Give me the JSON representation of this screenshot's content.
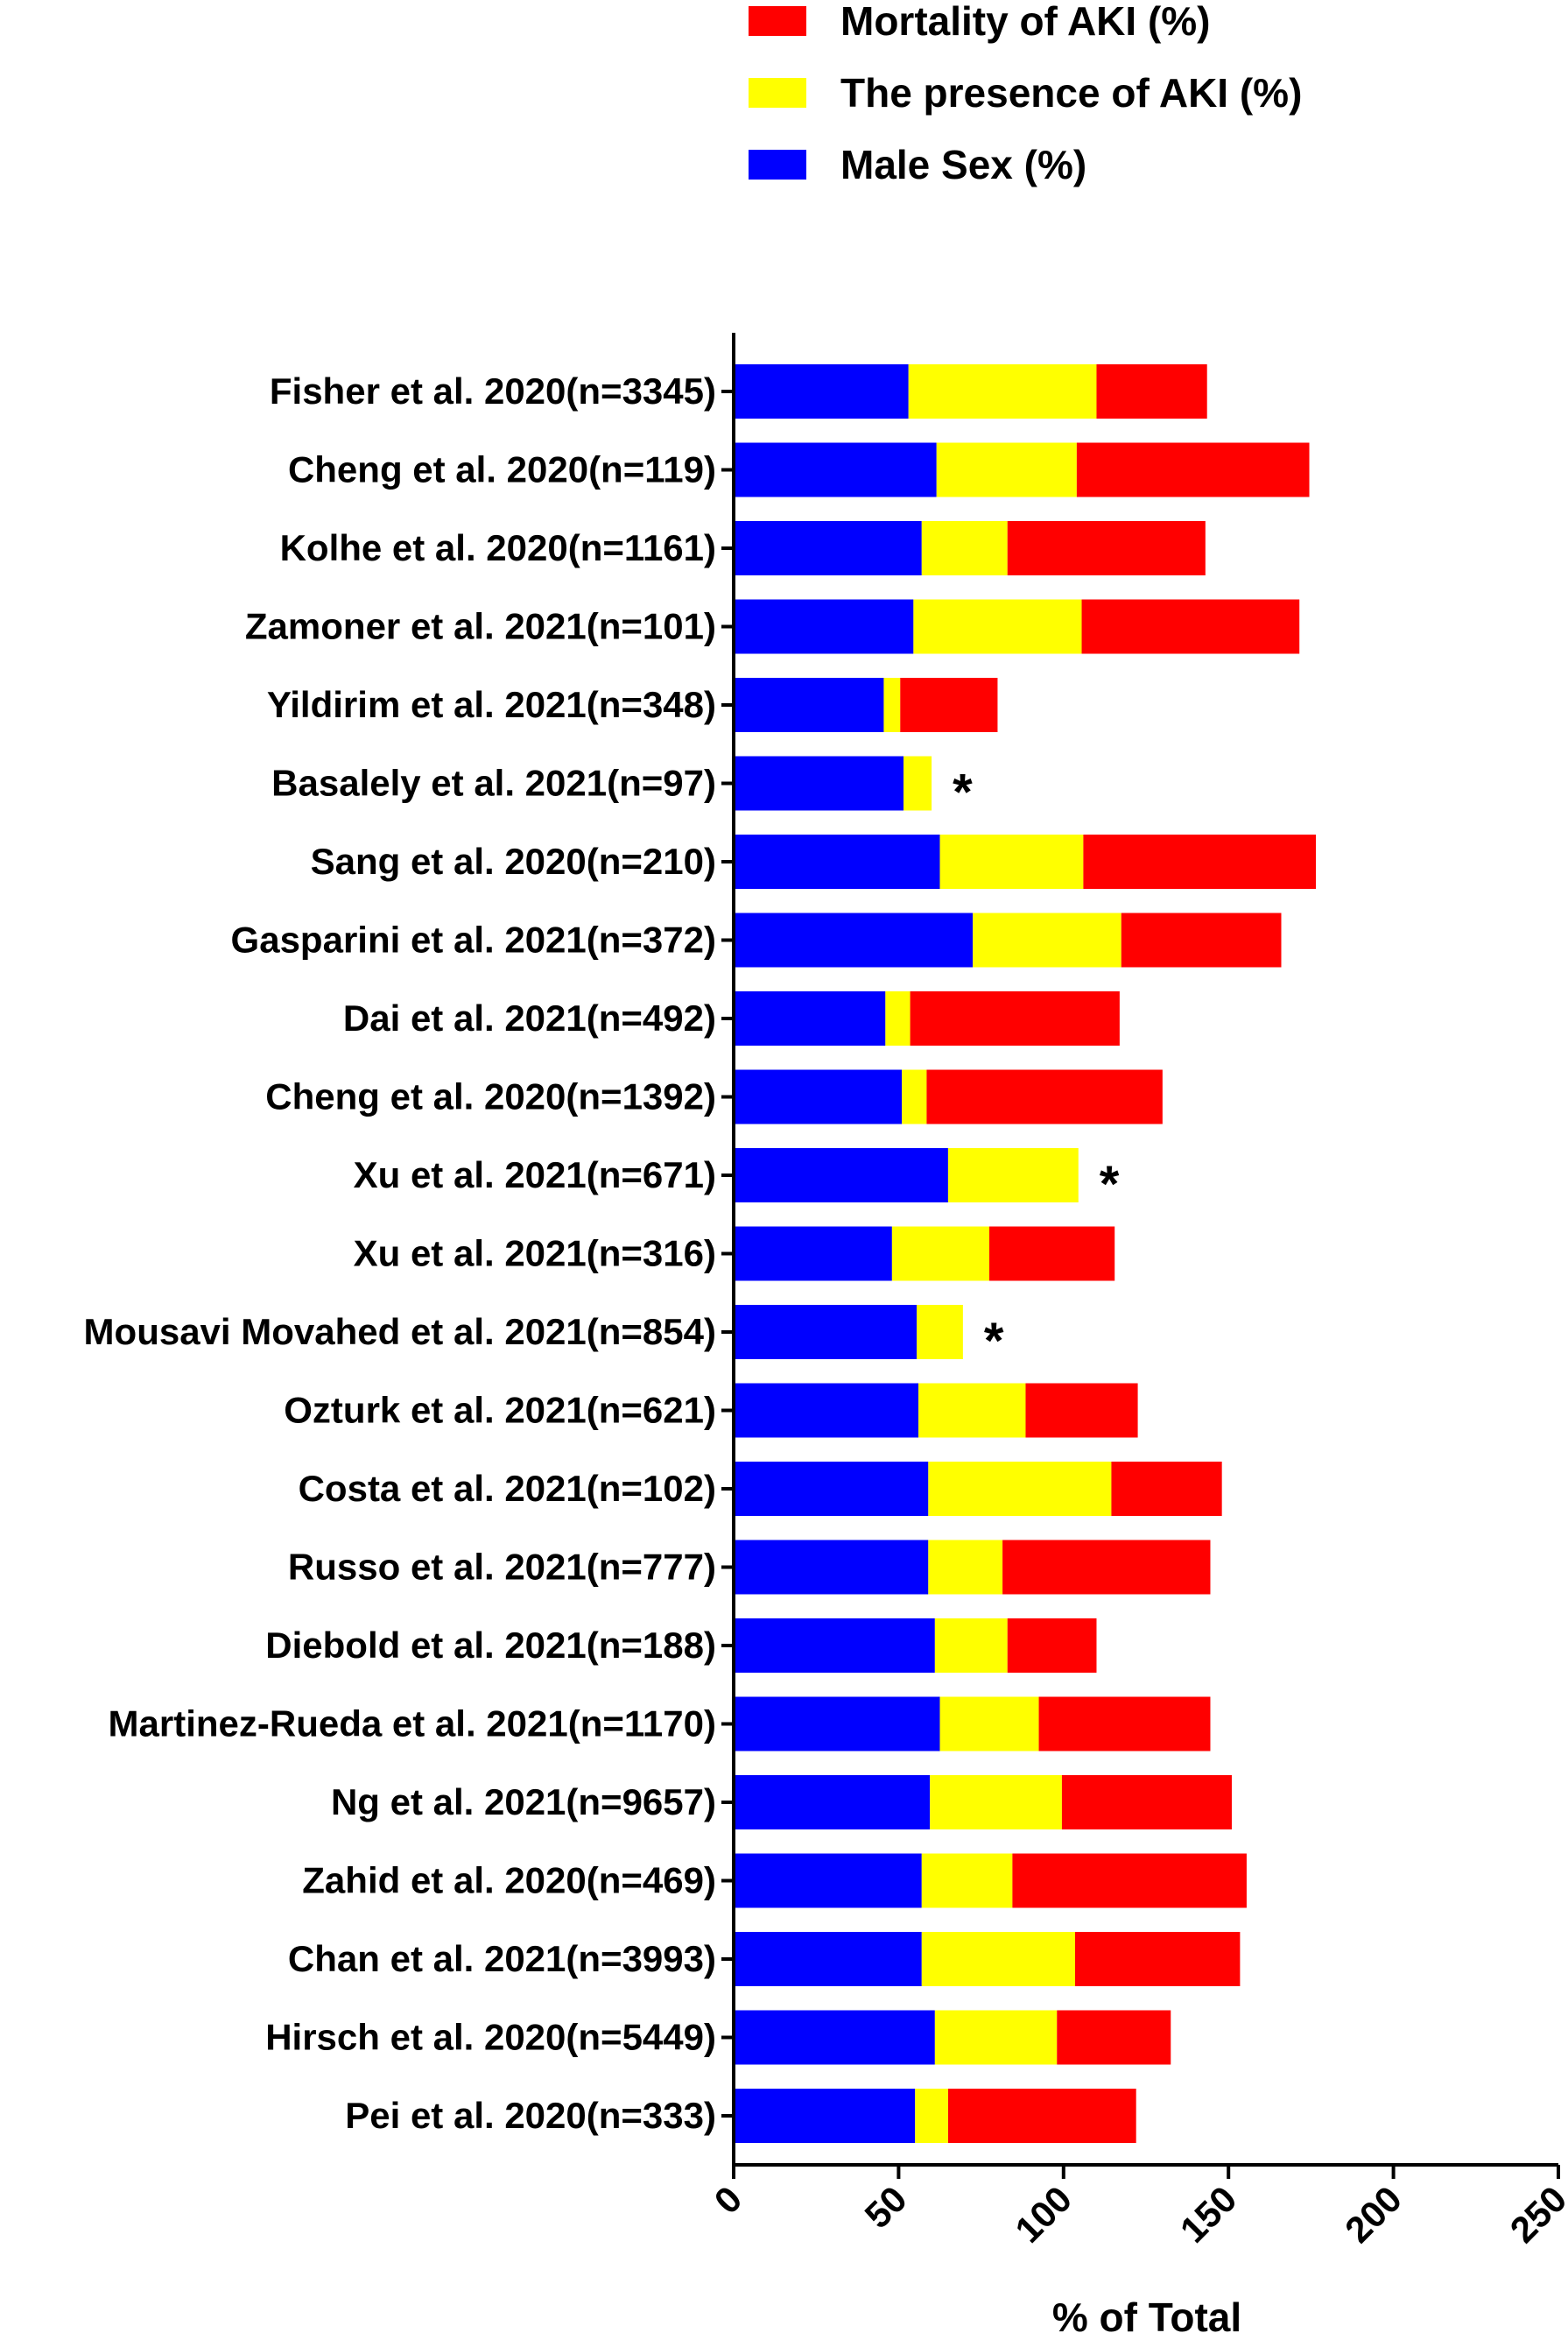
{
  "chart_data": {
    "type": "bar",
    "orientation": "horizontal",
    "stacked": true,
    "xlabel": "% of Total",
    "ylabel": "",
    "xlim": [
      0,
      250
    ],
    "xticks": [
      "0",
      "50",
      "100",
      "150",
      "200",
      "250"
    ],
    "legend_position": "top",
    "categories": [
      "Fisher et al. 2020(n=3345)",
      "Cheng et al. 2020(n=119)",
      "Kolhe et al. 2020(n=1161)",
      "Zamoner et al. 2021(n=101)",
      "Yildirim et al. 2021(n=348)",
      "Basalely et al. 2021(n=97)",
      "Sang et al. 2020(n=210)",
      "Gasparini et al. 2021(n=372)",
      "Dai et al. 2021(n=492)",
      "Cheng et al. 2020(n=1392)",
      "Xu et al. 2021(n=671)",
      "Xu et al. 2021(n=316)",
      "Mousavi Movahed et al. 2021(n=854)",
      "Ozturk et al. 2021(n=621)",
      "Costa et al. 2021(n=102)",
      "Russo et al. 2021(n=777)",
      "Diebold et al. 2021(n=188)",
      "Martinez-Rueda et al. 2021(n=1170)",
      "Ng et al. 2021(n=9657)",
      "Zahid et al. 2020(n=469)",
      "Chan et al. 2021(n=3993)",
      "Hirsch et al. 2020(n=5449)",
      "Pei et al. 2020(n=333)"
    ],
    "series": [
      {
        "name": "Male Sex (%)",
        "color": "#0000ff",
        "values": [
          53,
          61.5,
          57,
          54.5,
          45.5,
          51.5,
          62.5,
          72.5,
          46,
          51,
          65,
          48,
          55.5,
          56,
          59,
          59,
          61,
          62.5,
          59.5,
          57,
          57,
          61,
          55
        ]
      },
      {
        "name": "The presence of AKI (%)",
        "color": "#ffff00",
        "values": [
          57,
          42.5,
          26,
          51,
          5,
          8.5,
          43.5,
          45,
          7.5,
          7.5,
          39.5,
          29.5,
          14,
          32.5,
          55.5,
          22.5,
          22,
          30,
          40,
          27.5,
          46.5,
          37,
          10
        ]
      },
      {
        "name": "Mortality of AKI (%)",
        "color": "#ff0000",
        "values": [
          33.5,
          70.5,
          60,
          66,
          29.5,
          null,
          70.5,
          48.5,
          63.5,
          71.5,
          null,
          38,
          null,
          34,
          33.5,
          63,
          27,
          52,
          51.5,
          71,
          50,
          34.5,
          57
        ]
      }
    ],
    "legend": [
      {
        "label": "Mortality of AKI (%)",
        "color": "#ff0000"
      },
      {
        "label": "The presence of AKI (%)",
        "color": "#ffff00"
      },
      {
        "label": "Male Sex (%)",
        "color": "#0000ff"
      }
    ],
    "annotations": [
      {
        "category_index": 5,
        "text": "*"
      },
      {
        "category_index": 10,
        "text": "*"
      },
      {
        "category_index": 12,
        "text": "*"
      }
    ]
  }
}
